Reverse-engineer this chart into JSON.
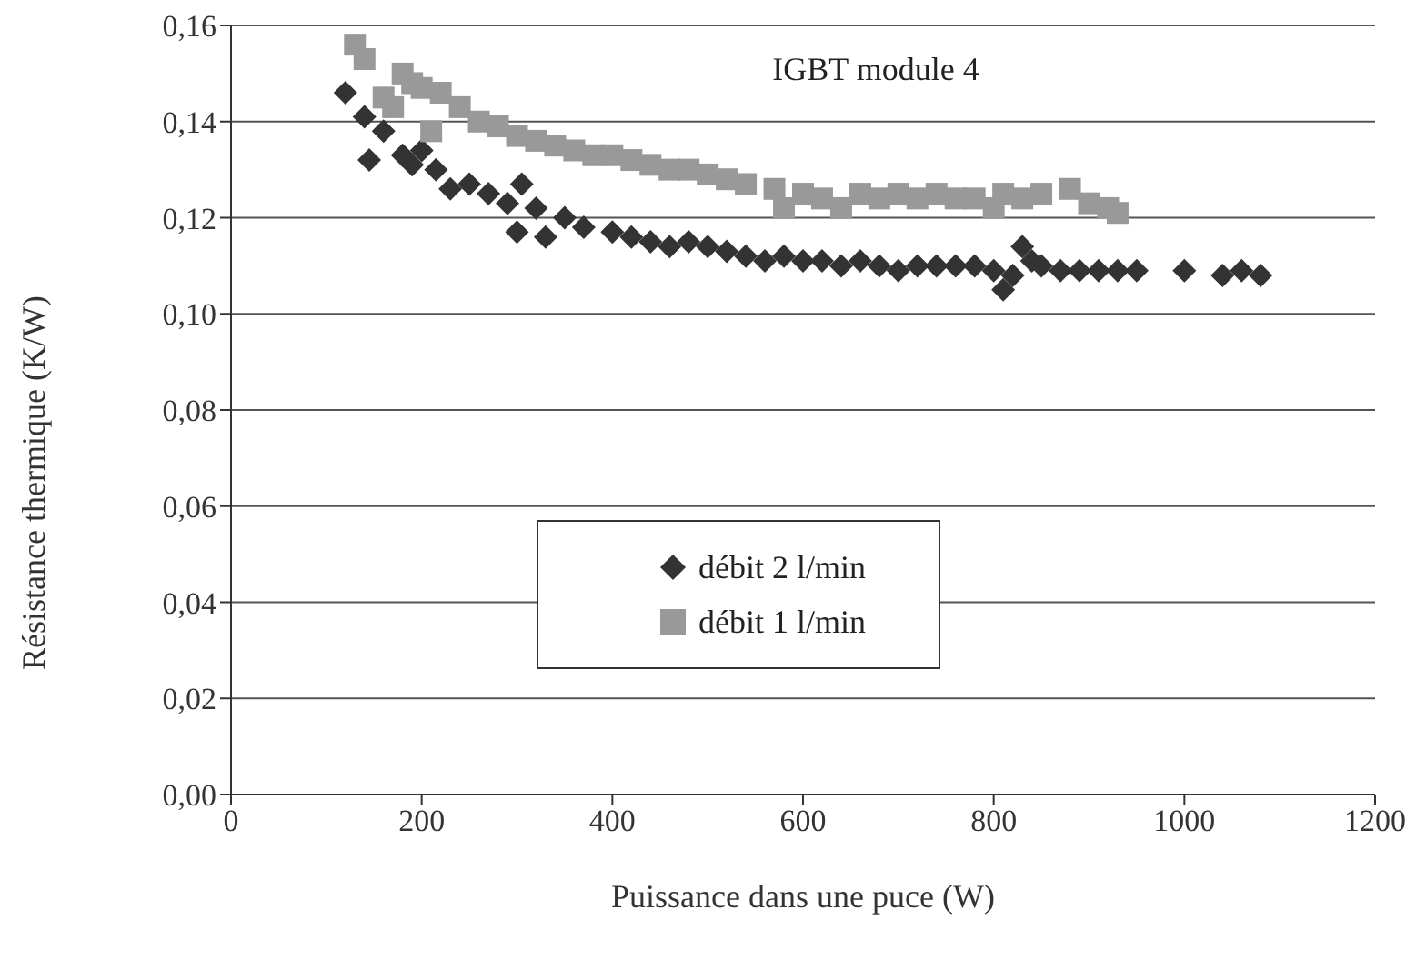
{
  "chart_data": {
    "type": "scatter",
    "title": "IGBT module 4",
    "xlabel": "Puissance dans une puce  (W)",
    "ylabel": "Résistance thermique (K/W)",
    "xlim": [
      0,
      1200
    ],
    "xticks": [
      0,
      200,
      400,
      600,
      800,
      1000,
      1200
    ],
    "ylim": [
      0,
      0.16
    ],
    "yticks": [
      {
        "value": 0,
        "label": "0,00"
      },
      {
        "value": 0.02,
        "label": "0,02"
      },
      {
        "value": 0.04,
        "label": "0,04"
      },
      {
        "value": 0.06,
        "label": "0,06"
      },
      {
        "value": 0.08,
        "label": "0,08"
      },
      {
        "value": 0.1,
        "label": "0,10"
      },
      {
        "value": 0.12,
        "label": "0,12"
      },
      {
        "value": 0.14,
        "label": "0,14"
      },
      {
        "value": 0.16,
        "label": "0,16"
      }
    ],
    "grid": "y",
    "legend": "center",
    "series": [
      {
        "name": "débit 2 l/min",
        "color": "#333333",
        "marker": "diamond",
        "x": [
          120,
          140,
          145,
          160,
          180,
          190,
          200,
          215,
          230,
          250,
          270,
          290,
          300,
          305,
          320,
          330,
          350,
          370,
          400,
          420,
          440,
          460,
          480,
          500,
          520,
          540,
          560,
          580,
          600,
          620,
          640,
          660,
          680,
          700,
          720,
          740,
          760,
          780,
          800,
          810,
          820,
          830,
          840,
          850,
          870,
          890,
          910,
          930,
          950,
          1000,
          1040,
          1060,
          1080
        ],
        "values": [
          0.146,
          0.141,
          0.132,
          0.138,
          0.133,
          0.131,
          0.134,
          0.13,
          0.126,
          0.127,
          0.125,
          0.123,
          0.117,
          0.127,
          0.122,
          0.116,
          0.12,
          0.118,
          0.117,
          0.116,
          0.115,
          0.114,
          0.115,
          0.114,
          0.113,
          0.112,
          0.111,
          0.112,
          0.111,
          0.111,
          0.11,
          0.111,
          0.11,
          0.109,
          0.11,
          0.11,
          0.11,
          0.11,
          0.109,
          0.105,
          0.108,
          0.114,
          0.111,
          0.11,
          0.109,
          0.109,
          0.109,
          0.109,
          0.109,
          0.109,
          0.108,
          0.109,
          0.108
        ]
      },
      {
        "name": "débit 1 l/min",
        "color": "#999999",
        "marker": "square",
        "x": [
          130,
          140,
          160,
          170,
          180,
          190,
          200,
          210,
          220,
          240,
          260,
          280,
          300,
          320,
          340,
          360,
          380,
          400,
          420,
          440,
          460,
          480,
          500,
          520,
          540,
          570,
          580,
          600,
          620,
          640,
          660,
          680,
          700,
          720,
          740,
          760,
          780,
          800,
          810,
          830,
          850,
          880,
          900,
          920,
          930
        ],
        "values": [
          0.156,
          0.153,
          0.145,
          0.143,
          0.15,
          0.148,
          0.147,
          0.138,
          0.146,
          0.143,
          0.14,
          0.139,
          0.137,
          0.136,
          0.135,
          0.134,
          0.133,
          0.133,
          0.132,
          0.131,
          0.13,
          0.13,
          0.129,
          0.128,
          0.127,
          0.126,
          0.122,
          0.125,
          0.124,
          0.122,
          0.125,
          0.124,
          0.125,
          0.124,
          0.125,
          0.124,
          0.124,
          0.122,
          0.125,
          0.124,
          0.125,
          0.126,
          0.123,
          0.122,
          0.121
        ]
      }
    ]
  }
}
